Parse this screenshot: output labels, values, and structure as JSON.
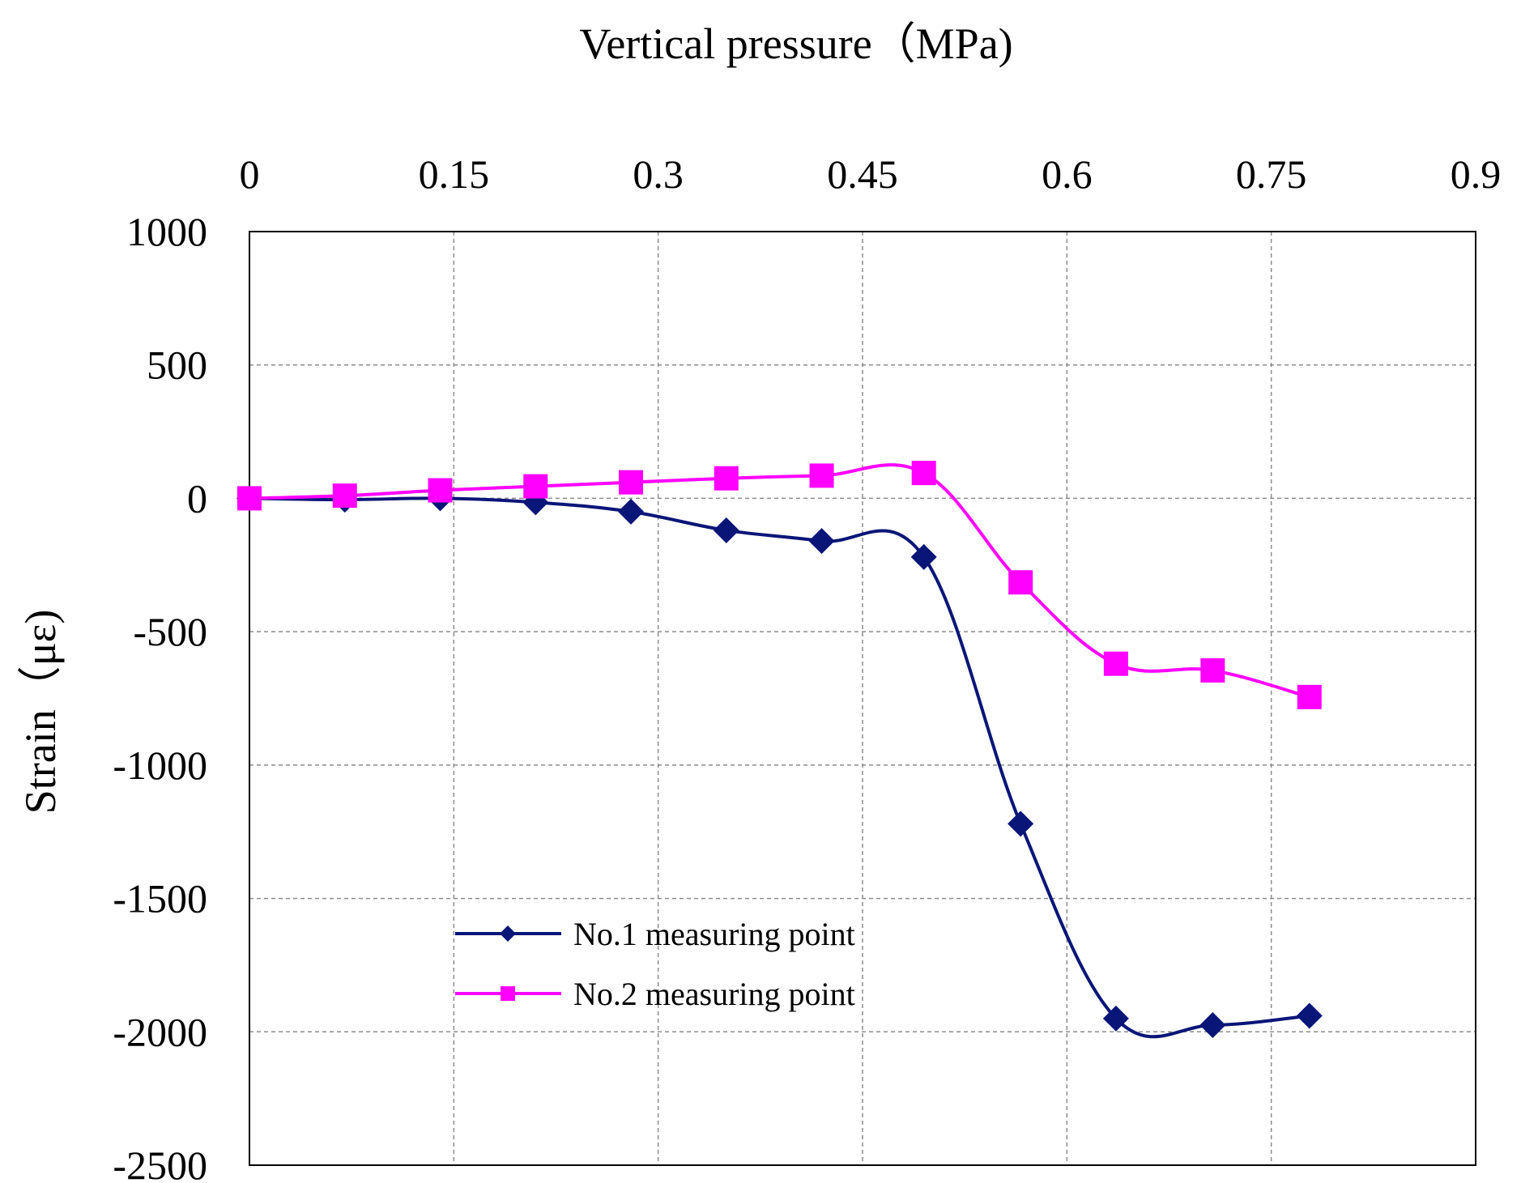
{
  "chart_data": {
    "type": "line",
    "title": "",
    "xlabel": "Vertical pressure（MPa)",
    "ylabel": "Strain（με)",
    "xlim": [
      0,
      0.9
    ],
    "ylim": [
      -2500,
      1000
    ],
    "x_ticks": [
      "0",
      "0.15",
      "0.3",
      "0.45",
      "0.6",
      "0.75",
      "0.9"
    ],
    "y_ticks": [
      "1000",
      "500",
      "0",
      "-500",
      "-1000",
      "-1500",
      "-2000",
      "-2500"
    ],
    "x_tick_values": [
      0,
      0.15,
      0.3,
      0.45,
      0.6,
      0.75,
      0.9
    ],
    "y_tick_values": [
      1000,
      500,
      0,
      -500,
      -1000,
      -1500,
      -2000,
      -2500
    ],
    "grid": true,
    "legend_position": "lower-left",
    "series": [
      {
        "name": "No.1 measuring point",
        "color": "#0a1578",
        "marker": "diamond",
        "x": [
          0,
          0.07,
          0.14,
          0.21,
          0.28,
          0.35,
          0.42,
          0.495,
          0.566,
          0.636,
          0.707,
          0.778
        ],
        "y": [
          0,
          -5,
          0,
          -15,
          -50,
          -120,
          -160,
          -220,
          -1220,
          -1950,
          -1975,
          -1940
        ]
      },
      {
        "name": "No.2 measuring point",
        "color": "#ff00ff",
        "marker": "square",
        "x": [
          0,
          0.07,
          0.14,
          0.21,
          0.28,
          0.35,
          0.42,
          0.495,
          0.566,
          0.636,
          0.707,
          0.778
        ],
        "y": [
          0,
          10,
          30,
          45,
          60,
          75,
          85,
          95,
          -315,
          -620,
          -645,
          -745
        ]
      }
    ]
  }
}
